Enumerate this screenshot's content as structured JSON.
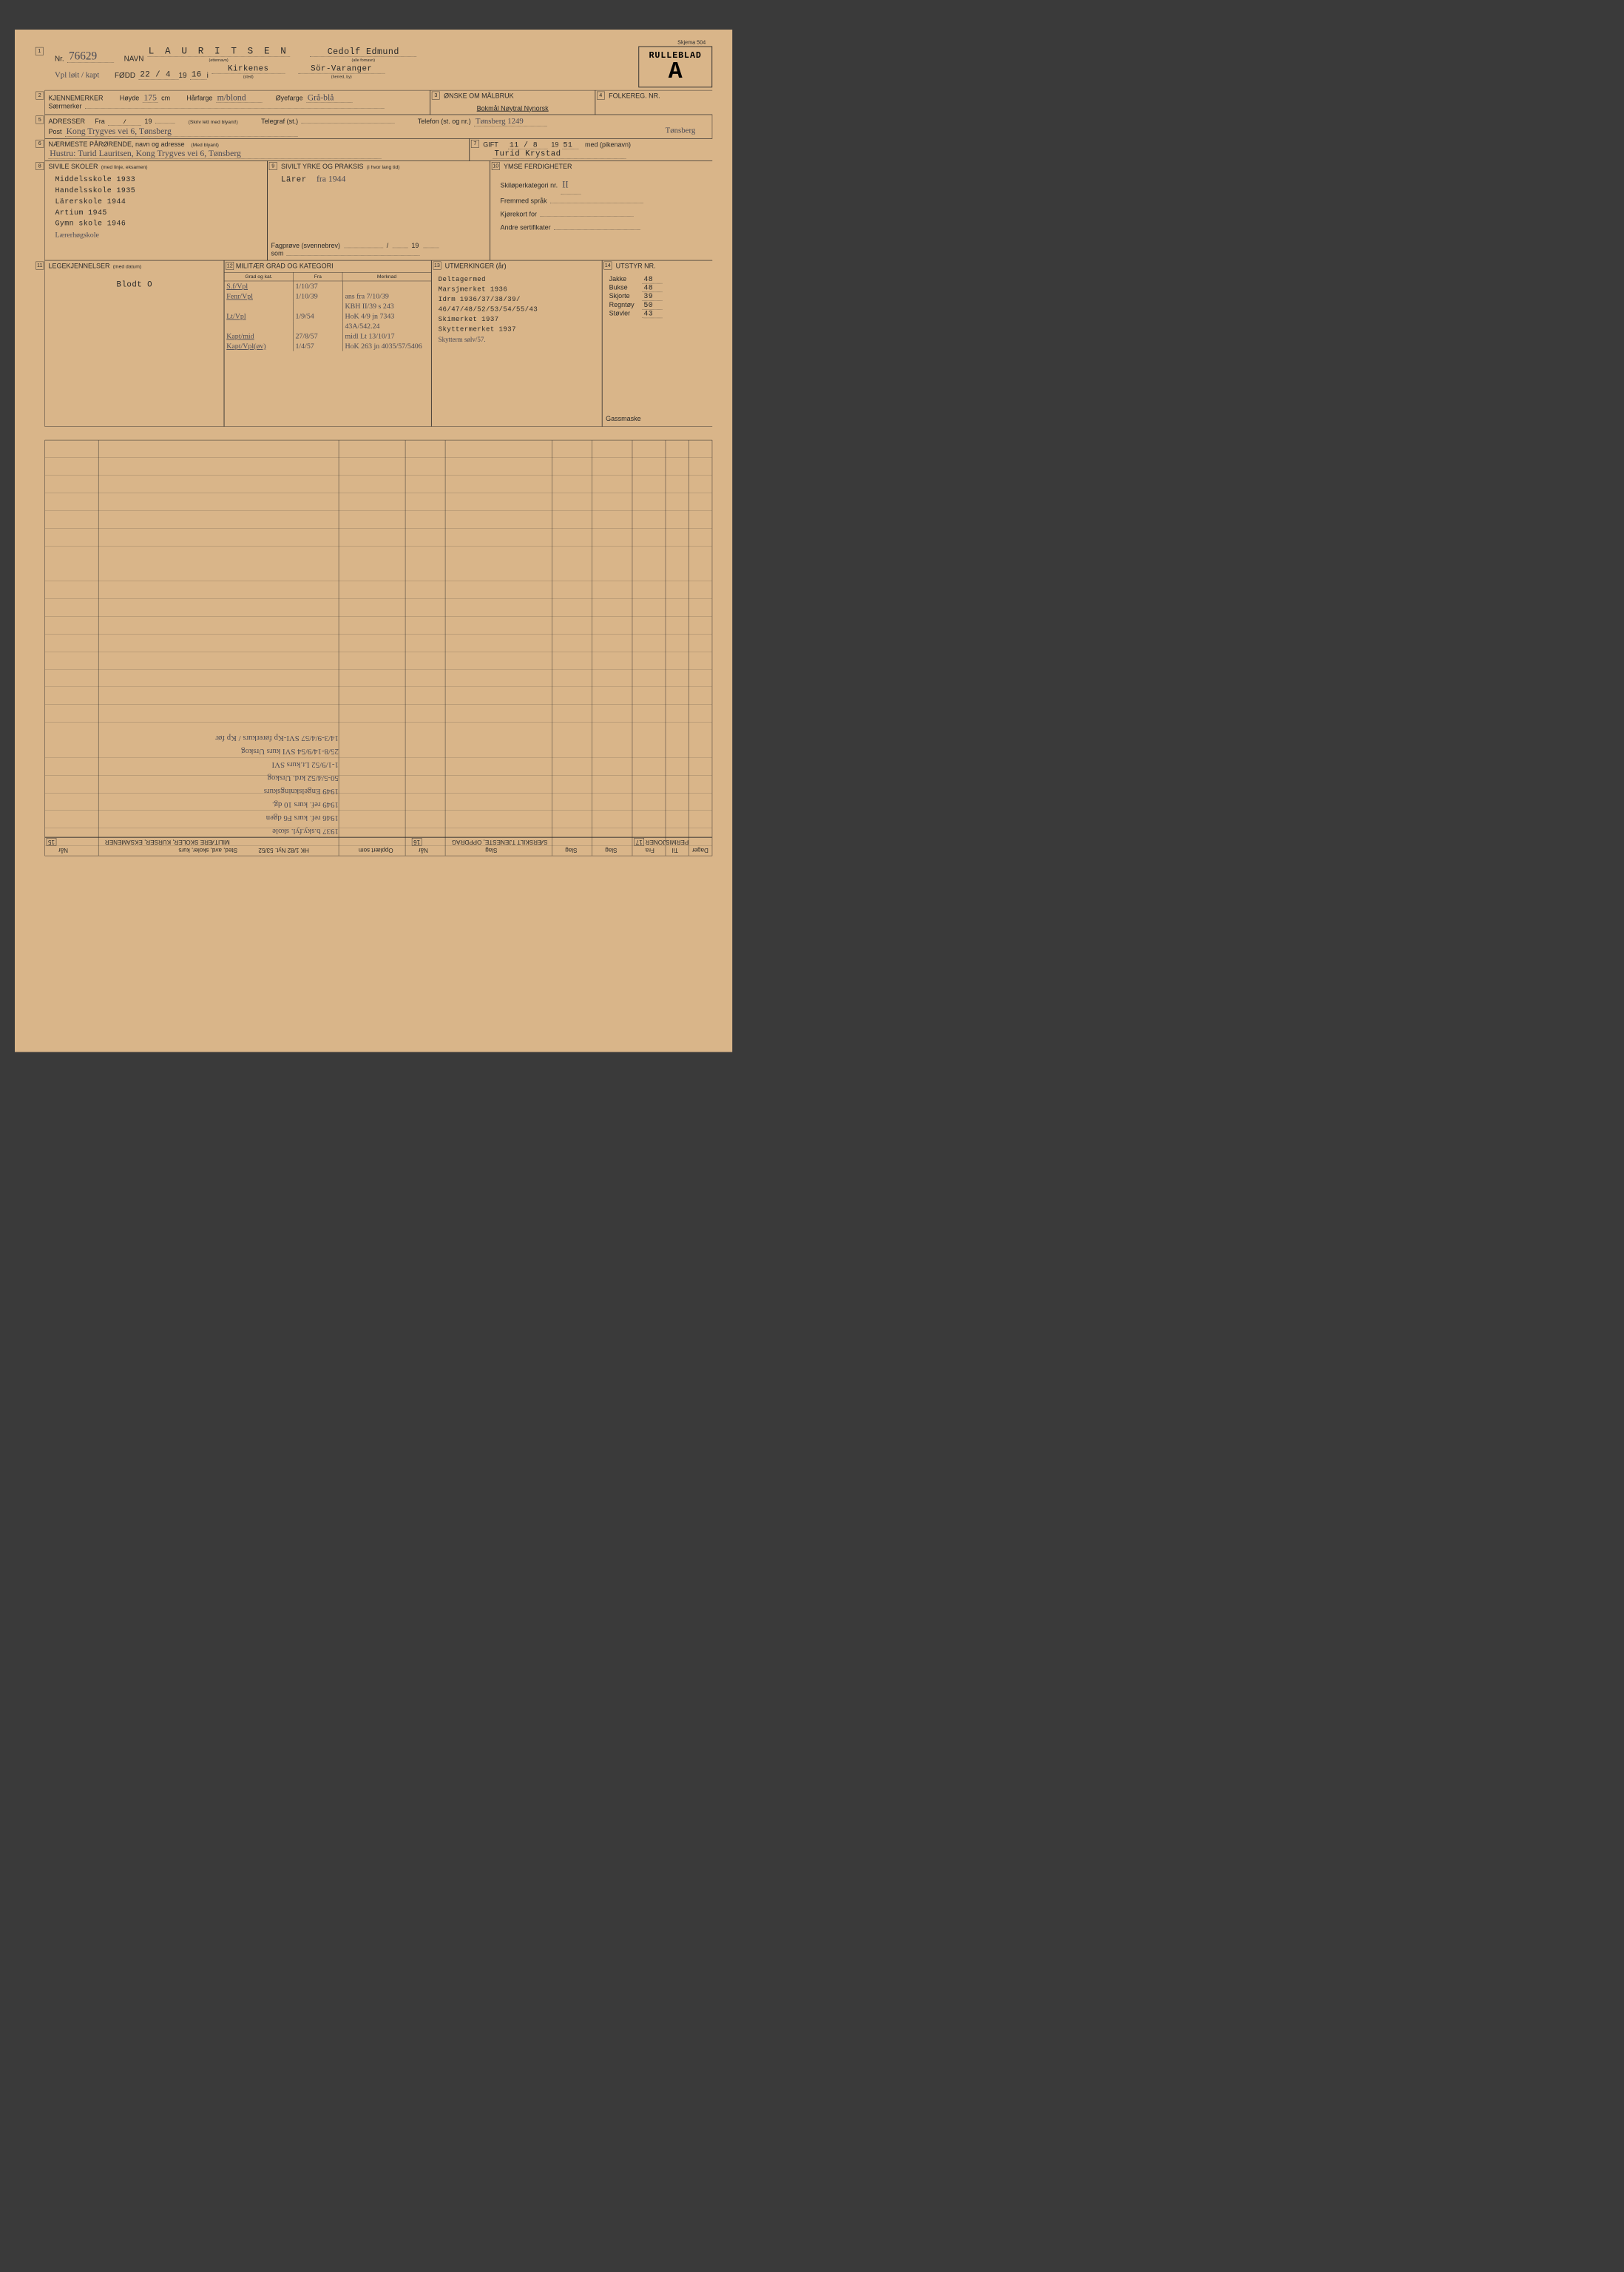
{
  "meta": {
    "skjema": "Skjema 504",
    "rulleblad": "RULLEBLAD",
    "rulleblad_letter": "A"
  },
  "s1": {
    "nr_lbl": "Nr.",
    "nr": "76629",
    "navn_lbl": "NAVN",
    "etternavn": "L A U R I T S E N",
    "etternavn_sub": "(etternavn)",
    "fornavn": "Cedolf Edmund",
    "fornavn_sub": "(alle fornavn)",
    "hw_below": "Vpl løit / kapt",
    "fodd_lbl": "FØDD",
    "fodd": "22 / 4",
    "year_pre": "19",
    "year": "16",
    "i": "i",
    "sted": "Kirkenes",
    "sted_sub": "(sted)",
    "herred": "Sör-Varanger",
    "herred_sub": "(herred, by)"
  },
  "s2": {
    "title": "KJENNEMERKER",
    "hoyde_lbl": "Høyde",
    "hoyde": "175",
    "cm": "cm",
    "harfarge_lbl": "Hårfarge",
    "harfarge": "m/blond",
    "oyefarge_lbl": "Øyefarge",
    "oyefarge": "Grå-blå",
    "saer_lbl": "Særmerker"
  },
  "s3": {
    "title": "ØNSKE OM MÅLBRUK",
    "opts": "Bokmål   Nøytral   Nynorsk"
  },
  "s4": {
    "title": "FOLKEREG. NR."
  },
  "s5": {
    "title": "ADRESSER",
    "fra": "Fra",
    "fra_val": "/",
    "year_pre": "19",
    "skriv": "(Skriv lett med blyant!)",
    "telegraf": "Telegraf (st.)",
    "telefon": "Telefon (st. og nr.)",
    "telefon_val": "Tønsberg 1249",
    "post": "Post",
    "post_val": "Kong Trygves vei 6, Tønsberg",
    "telefon_val2": "Tønsberg"
  },
  "s6": {
    "title": "NÆRMESTE PÅRØRENDE, navn og adresse",
    "sub": "(Med blyant)",
    "val": "Hustru: Turid Lauritsen, Kong Trygves vei 6, Tønsberg"
  },
  "s7": {
    "title": "GIFT",
    "date": "11 / 8",
    "year_pre": "19",
    "year": "51",
    "med": "med (pikenavn)",
    "val": "Turid Krystad"
  },
  "s8": {
    "title": "SIVILE SKOLER",
    "sub": "(med linje, eksamen)",
    "lines": [
      "Middelsskole 1933",
      "Handelsskole 1935",
      "Lärerskole 1944",
      "Artium 1945",
      "Gymn skole 1946",
      "Lærerhøgskole"
    ]
  },
  "s9": {
    "title": "SIVILT YRKE OG PRAKSIS",
    "sub": "(i hvor lang tid)",
    "val": "Lärer",
    "val_hw": "fra 1944",
    "fag": "Fagprøve (svennebrev)",
    "som": "som",
    "slash": "/",
    "year_pre": "19"
  },
  "s10": {
    "title": "YMSE FERDIGHETER",
    "ski": "Skiløperkategori nr.",
    "ski_val": "II",
    "spr": "Fremmed språk",
    "kort": "Kjørekort for",
    "sert": "Andre sertifikater"
  },
  "s11": {
    "title": "LEGEKJENNELSER",
    "sub": "(med datum)",
    "val": "Blodt O"
  },
  "s12": {
    "title": "MILITÆR GRAD OG KATEGORI",
    "h1": "Grad og kat.",
    "h2": "Fra",
    "h3": "Merknad",
    "rows": [
      {
        "a": "S.f/Vpl",
        "b": "1/10/37",
        "c": ""
      },
      {
        "a": "Fenr/Vpl",
        "b": "1/10/39",
        "c": "ans fra 7/10/39"
      },
      {
        "a": "",
        "b": "",
        "c": "KBH II/39 s 243"
      },
      {
        "a": "Lt/Vpl",
        "b": "1/9/54",
        "c": "HoK 4/9 jn 7343"
      },
      {
        "a": "",
        "b": "",
        "c": "43A/542.24"
      },
      {
        "a": "Kapt/mid",
        "b": "27/8/57",
        "c": "midl Lt 13/10/17"
      },
      {
        "a": "Kapt/Vpl(øv)",
        "b": "1/4/57",
        "c": "HoK 263 jn 4035/57/5406"
      }
    ]
  },
  "s13": {
    "title": "UTMERKINGER (år)",
    "lines": [
      "Deltagermed",
      "Marsjmerket 1936",
      "Idrm 1936/37/38/39/",
      "46/47/48/52/53/54/55/43",
      "Skimerket 1937",
      "Skyttermerket 1937",
      "Skytterm sølv/57."
    ]
  },
  "s14": {
    "title": "UTSTYR NR.",
    "items": [
      {
        "k": "Jakke",
        "v": "48"
      },
      {
        "k": "Bukse",
        "v": "48"
      },
      {
        "k": "Skjorte",
        "v": "39"
      },
      {
        "k": "Regntøy",
        "v": "50"
      },
      {
        "k": "Støvler",
        "v": "43"
      }
    ],
    "gass": "Gassmaske"
  },
  "flip_headers": {
    "s15": "MILITÆRE SKOLER, KURSER, EKSAMENER",
    "s15_cols": [
      "Når",
      "Sted, avd, skoler, kurs",
      "Opplært som"
    ],
    "s16": "SÆRSKILT TJENESTE, OPPDRAG",
    "s16_cols": [
      "Når",
      "Slag",
      "Slag"
    ],
    "s17": "PERMISJONER",
    "s17_cols": [
      "Slag",
      "Fra",
      "Til",
      "Dager"
    ],
    "hk": "HK 1/82  Nyt. 53/52"
  },
  "flip_notes": [
    "1937   b.sky.fyl. skole",
    "1946   ref. kurs F6 dgen",
    "1949   ref. kurs 10 dg.",
    "1949   Engelskningskurs",
    "50-5/4/52   krd. Urskog",
    "1-1/9/52   Lt.kurs SVI",
    "25/8-14/9/54   SVI kurs Urskog",
    "14/3-9/4/57   SVI-Kp førerkurs / Kp før"
  ],
  "colors": {
    "paper": "#d9b589",
    "ink": "#2a2a2a",
    "pencil": "#4a4a55"
  }
}
